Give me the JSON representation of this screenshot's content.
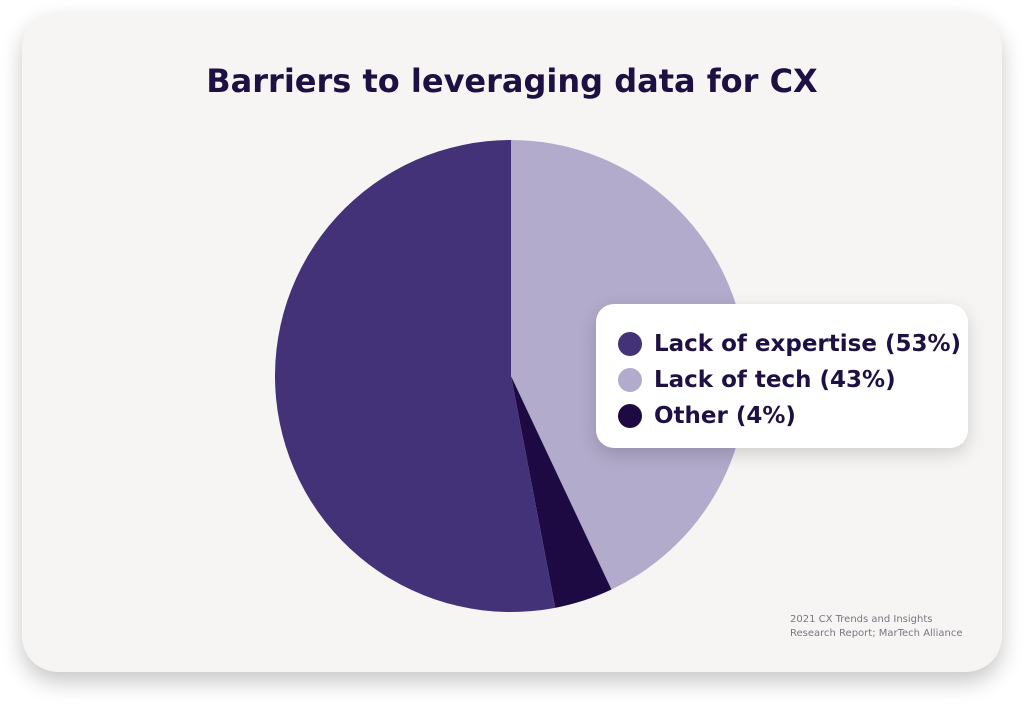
{
  "colors": {
    "card_background": "#f6f5f4",
    "title_text": "#1e1042",
    "source_text": "#777784"
  },
  "source": {
    "line1": "2021 CX Trends and Insights",
    "line2": "Research Report; MarTech Alliance"
  },
  "chart_data": {
    "type": "pie",
    "title": "Barriers to leveraging data for CX",
    "start": "12 o'clock",
    "direction": "clockwise",
    "slices": [
      {
        "label": "Lack of tech (43%)",
        "value": 43,
        "color": "#b2abcb"
      },
      {
        "label": "Other (4%)",
        "value": 4,
        "color": "#1e0a42"
      },
      {
        "label": "Lack of expertise (53%)",
        "value": 53,
        "color": "#433278"
      }
    ],
    "legend": {
      "placement": "right",
      "order": [
        "Lack of expertise (53%)",
        "Lack of tech (43%)",
        "Other (4%)"
      ]
    }
  }
}
